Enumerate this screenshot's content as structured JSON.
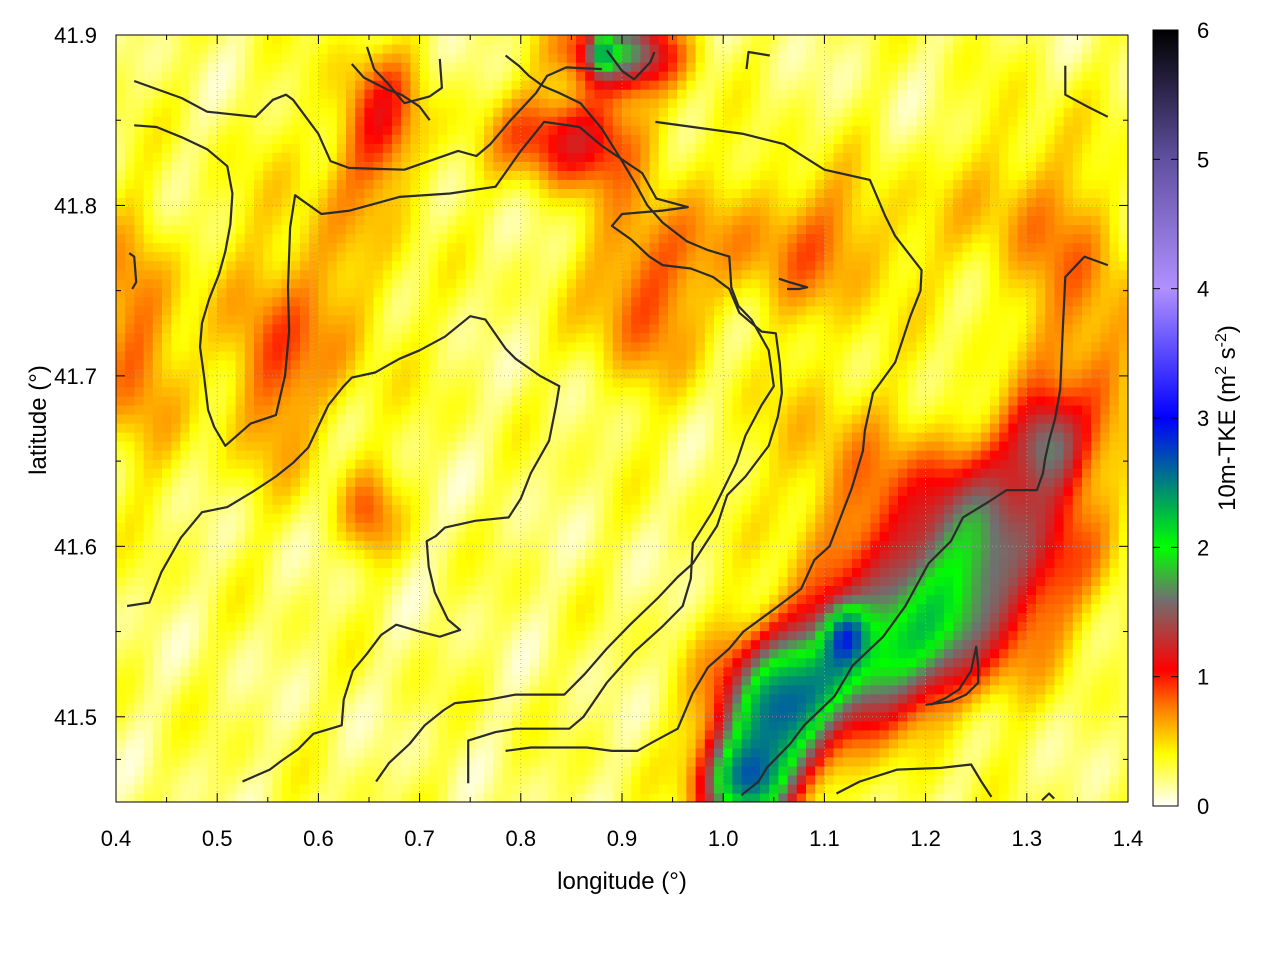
{
  "chart_data": {
    "type": "heatmap",
    "xlabel": "longitude (°)",
    "ylabel": "latitude (°)",
    "colorbar_label": "10m-TKE (m² s⁻²)",
    "colorbar_label_parts": {
      "base": "10m-TKE (m",
      "sup1": "2",
      "mid": " s",
      "sup2": "-2",
      "end": ")"
    },
    "xlim": [
      0.4,
      1.4
    ],
    "ylim": [
      41.45,
      41.9
    ],
    "clim": [
      0,
      6
    ],
    "x_ticks": [
      0.4,
      0.5,
      0.6,
      0.7,
      0.8,
      0.9,
      1.0,
      1.1,
      1.2,
      1.3,
      1.4
    ],
    "x_tick_labels": [
      "0.4",
      "0.5",
      "0.6",
      "0.7",
      "0.8",
      "0.9",
      "1.0",
      "1.1",
      "1.2",
      "1.3",
      "1.4"
    ],
    "y_ticks": [
      41.5,
      41.6,
      41.7,
      41.8,
      41.9
    ],
    "y_tick_labels": [
      "41.5",
      "41.6",
      "41.7",
      "41.8",
      "41.9"
    ],
    "colorbar_ticks": [
      0,
      1,
      2,
      3,
      4,
      5,
      6
    ],
    "colorbar_tick_labels": [
      "0",
      "1",
      "2",
      "3",
      "4",
      "5",
      "6"
    ],
    "grid": true,
    "colormap": [
      [
        0.0,
        "#ffffff"
      ],
      [
        0.4,
        "#ffff00"
      ],
      [
        0.75,
        "#ff8000"
      ],
      [
        1.05,
        "#ff0000"
      ],
      [
        1.6,
        "#707070"
      ],
      [
        2.0,
        "#00ff00"
      ],
      [
        3.0,
        "#0000ff"
      ],
      [
        4.0,
        "#b090ff"
      ],
      [
        5.0,
        "#6050a0"
      ],
      [
        6.0,
        "#000000"
      ]
    ],
    "field_features": [
      {
        "lon": 1.05,
        "lat": 41.5,
        "sx": 0.04,
        "sy": 0.03,
        "amp": 1.9
      },
      {
        "lon": 1.12,
        "lat": 41.53,
        "sx": 0.05,
        "sy": 0.025,
        "amp": 1.5
      },
      {
        "lon": 1.02,
        "lat": 41.46,
        "sx": 0.03,
        "sy": 0.02,
        "amp": 1.8
      },
      {
        "lon": 1.12,
        "lat": 41.55,
        "sx": 0.015,
        "sy": 0.012,
        "amp": 0.9
      },
      {
        "lon": 1.25,
        "lat": 41.6,
        "sx": 0.07,
        "sy": 0.04,
        "amp": 1.4
      },
      {
        "lon": 1.32,
        "lat": 41.66,
        "sx": 0.025,
        "sy": 0.02,
        "amp": 1.1
      },
      {
        "lon": 1.2,
        "lat": 41.55,
        "sx": 0.05,
        "sy": 0.03,
        "amp": 1.0
      },
      {
        "lon": 0.9,
        "lat": 41.89,
        "sx": 0.04,
        "sy": 0.015,
        "amp": 1.4
      },
      {
        "lon": 0.88,
        "lat": 41.89,
        "sx": 0.008,
        "sy": 0.008,
        "amp": 0.9
      },
      {
        "lon": 0.85,
        "lat": 41.84,
        "sx": 0.05,
        "sy": 0.02,
        "amp": 0.9
      },
      {
        "lon": 0.92,
        "lat": 41.75,
        "sx": 0.04,
        "sy": 0.04,
        "amp": 0.6
      },
      {
        "lon": 1.08,
        "lat": 41.78,
        "sx": 0.08,
        "sy": 0.03,
        "amp": 0.5
      },
      {
        "lon": 0.66,
        "lat": 41.85,
        "sx": 0.03,
        "sy": 0.03,
        "amp": 0.7
      },
      {
        "lon": 0.42,
        "lat": 41.72,
        "sx": 0.03,
        "sy": 0.05,
        "amp": 0.6
      },
      {
        "lon": 0.55,
        "lat": 41.7,
        "sx": 0.03,
        "sy": 0.04,
        "amp": 0.45
      },
      {
        "lon": 1.36,
        "lat": 41.72,
        "sx": 0.04,
        "sy": 0.05,
        "amp": 0.5
      },
      {
        "lon": 0.65,
        "lat": 41.62,
        "sx": 0.02,
        "sy": 0.02,
        "amp": 0.5
      },
      {
        "lon": 1.3,
        "lat": 41.8,
        "sx": 0.05,
        "sy": 0.04,
        "amp": 0.35
      },
      {
        "lon": 0.6,
        "lat": 41.75,
        "sx": 0.06,
        "sy": 0.06,
        "amp": 0.35
      },
      {
        "lon": 1.1,
        "lat": 41.65,
        "sx": 0.05,
        "sy": 0.05,
        "amp": 0.3
      }
    ],
    "contours": [
      [
        [
          0.418,
          41.873
        ],
        [
          0.465,
          41.863
        ],
        [
          0.49,
          41.855
        ],
        [
          0.538,
          41.852
        ],
        [
          0.555,
          41.862
        ],
        [
          0.568,
          41.865
        ],
        [
          0.575,
          41.862
        ],
        [
          0.6,
          41.842
        ],
        [
          0.612,
          41.826
        ],
        [
          0.63,
          41.822
        ],
        [
          0.685,
          41.821
        ],
        [
          0.738,
          41.832
        ],
        [
          0.756,
          41.829
        ],
        [
          0.77,
          41.836
        ],
        [
          0.79,
          41.85
        ],
        [
          0.815,
          41.866
        ],
        [
          0.826,
          41.876
        ],
        [
          0.845,
          41.881
        ],
        [
          0.88,
          41.88
        ]
      ],
      [
        [
          0.418,
          41.847
        ],
        [
          0.44,
          41.846
        ],
        [
          0.465,
          41.84
        ],
        [
          0.49,
          41.833
        ],
        [
          0.51,
          41.823
        ],
        [
          0.515,
          41.807
        ],
        [
          0.513,
          41.789
        ],
        [
          0.508,
          41.773
        ],
        [
          0.502,
          41.76
        ],
        [
          0.492,
          41.745
        ],
        [
          0.485,
          41.731
        ],
        [
          0.483,
          41.717
        ],
        [
          0.487,
          41.7
        ],
        [
          0.491,
          41.68
        ],
        [
          0.497,
          41.67
        ],
        [
          0.508,
          41.659
        ],
        [
          0.533,
          41.672
        ],
        [
          0.558,
          41.677
        ],
        [
          0.567,
          41.7
        ],
        [
          0.571,
          41.726
        ],
        [
          0.57,
          41.752
        ],
        [
          0.572,
          41.787
        ],
        [
          0.577,
          41.806
        ],
        [
          0.584,
          41.803
        ],
        [
          0.603,
          41.795
        ],
        [
          0.631,
          41.797
        ],
        [
          0.68,
          41.805
        ],
        [
          0.73,
          41.807
        ],
        [
          0.775,
          41.811
        ],
        [
          0.8,
          41.832
        ],
        [
          0.823,
          41.849
        ],
        [
          0.858,
          41.846
        ],
        [
          0.88,
          41.835
        ],
        [
          0.92,
          41.819
        ],
        [
          0.934,
          41.804
        ],
        [
          0.965,
          41.799
        ],
        [
          0.94,
          41.797
        ],
        [
          0.9,
          41.795
        ],
        [
          0.89,
          41.788
        ],
        [
          0.909,
          41.78
        ],
        [
          0.927,
          41.77
        ],
        [
          0.94,
          41.765
        ],
        [
          0.968,
          41.763
        ],
        [
          0.99,
          41.758
        ],
        [
          1.006,
          41.751
        ],
        [
          1.016,
          41.737
        ],
        [
          1.038,
          41.726
        ],
        [
          1.052,
          41.725
        ],
        [
          1.056,
          41.707
        ],
        [
          1.058,
          41.69
        ],
        [
          1.054,
          41.676
        ],
        [
          1.045,
          41.659
        ],
        [
          1.022,
          41.641
        ],
        [
          1.004,
          41.63
        ],
        [
          0.994,
          41.612
        ],
        [
          0.983,
          41.602
        ],
        [
          0.97,
          41.59
        ],
        [
          0.955,
          41.582
        ],
        [
          0.936,
          41.57
        ],
        [
          0.908,
          41.554
        ],
        [
          0.885,
          41.54
        ],
        [
          0.863,
          41.525
        ],
        [
          0.843,
          41.513
        ],
        [
          0.795,
          41.513
        ],
        [
          0.768,
          41.51
        ],
        [
          0.735,
          41.508
        ],
        [
          0.724,
          41.504
        ],
        [
          0.705,
          41.495
        ],
        [
          0.69,
          41.484
        ],
        [
          0.67,
          41.473
        ],
        [
          0.657,
          41.462
        ]
      ],
      [
        [
          0.411,
          41.565
        ],
        [
          0.433,
          41.567
        ],
        [
          0.445,
          41.585
        ],
        [
          0.464,
          41.605
        ],
        [
          0.485,
          41.62
        ],
        [
          0.51,
          41.623
        ],
        [
          0.535,
          41.632
        ],
        [
          0.558,
          41.641
        ],
        [
          0.575,
          41.649
        ],
        [
          0.59,
          41.658
        ],
        [
          0.602,
          41.673
        ],
        [
          0.61,
          41.683
        ],
        [
          0.625,
          41.694
        ],
        [
          0.633,
          41.699
        ],
        [
          0.656,
          41.702
        ],
        [
          0.68,
          41.71
        ],
        [
          0.7,
          41.715
        ],
        [
          0.725,
          41.723
        ],
        [
          0.75,
          41.735
        ],
        [
          0.765,
          41.733
        ],
        [
          0.785,
          41.716
        ],
        [
          0.795,
          41.71
        ],
        [
          0.819,
          41.7
        ],
        [
          0.838,
          41.694
        ],
        [
          0.835,
          41.683
        ],
        [
          0.828,
          41.662
        ],
        [
          0.81,
          41.643
        ],
        [
          0.8,
          41.628
        ],
        [
          0.788,
          41.617
        ],
        [
          0.755,
          41.615
        ],
        [
          0.725,
          41.611
        ],
        [
          0.716,
          41.606
        ],
        [
          0.707,
          41.603
        ],
        [
          0.709,
          41.588
        ],
        [
          0.715,
          41.573
        ],
        [
          0.728,
          41.557
        ],
        [
          0.74,
          41.551
        ],
        [
          0.72,
          41.547
        ],
        [
          0.7,
          41.55
        ],
        [
          0.677,
          41.554
        ],
        [
          0.662,
          41.548
        ],
        [
          0.648,
          41.537
        ],
        [
          0.634,
          41.527
        ],
        [
          0.625,
          41.51
        ],
        [
          0.623,
          41.495
        ],
        [
          0.595,
          41.49
        ],
        [
          0.58,
          41.481
        ],
        [
          0.563,
          41.474
        ],
        [
          0.552,
          41.469
        ],
        [
          0.525,
          41.462
        ]
      ],
      [
        [
          0.748,
          41.461
        ],
        [
          0.748,
          41.486
        ],
        [
          0.775,
          41.491
        ],
        [
          0.795,
          41.493
        ],
        [
          0.848,
          41.493
        ],
        [
          0.862,
          41.5
        ],
        [
          0.885,
          41.52
        ],
        [
          0.912,
          41.538
        ],
        [
          0.94,
          41.553
        ],
        [
          0.96,
          41.565
        ],
        [
          0.968,
          41.581
        ],
        [
          0.97,
          41.602
        ],
        [
          0.989,
          41.62
        ],
        [
          0.999,
          41.632
        ],
        [
          1.013,
          41.649
        ],
        [
          1.022,
          41.665
        ],
        [
          1.038,
          41.683
        ],
        [
          1.05,
          41.694
        ],
        [
          1.045,
          41.715
        ],
        [
          1.028,
          41.733
        ],
        [
          1.015,
          41.741
        ],
        [
          1.008,
          41.752
        ],
        [
          1.006,
          41.77
        ],
        [
          0.984,
          41.774
        ],
        [
          0.964,
          41.779
        ],
        [
          0.94,
          41.79
        ],
        [
          0.925,
          41.8
        ],
        [
          0.914,
          41.812
        ],
        [
          0.899,
          41.827
        ],
        [
          0.88,
          41.845
        ],
        [
          0.859,
          41.86
        ],
        [
          0.838,
          41.866
        ],
        [
          0.822,
          41.87
        ],
        [
          0.808,
          41.876
        ],
        [
          0.798,
          41.882
        ],
        [
          0.785,
          41.888
        ]
      ],
      [
        [
          0.72,
          41.886
        ],
        [
          0.722,
          41.869
        ],
        [
          0.71,
          41.864
        ],
        [
          0.685,
          41.86
        ],
        [
          0.668,
          41.872
        ],
        [
          0.655,
          41.88
        ],
        [
          0.648,
          41.893
        ]
      ],
      [
        [
          0.885,
          41.891
        ],
        [
          0.9,
          41.879
        ],
        [
          0.912,
          41.874
        ],
        [
          0.928,
          41.884
        ],
        [
          0.932,
          41.89
        ]
      ],
      [
        [
          1.023,
          41.88
        ],
        [
          1.025,
          41.89
        ],
        [
          1.046,
          41.888
        ]
      ],
      [
        [
          1.338,
          41.882
        ],
        [
          1.338,
          41.865
        ],
        [
          1.36,
          41.858
        ],
        [
          1.38,
          41.852
        ]
      ],
      [
        [
          0.933,
          41.849
        ],
        [
          0.97,
          41.846
        ],
        [
          1.02,
          41.842
        ],
        [
          1.06,
          41.836
        ],
        [
          1.1,
          41.821
        ],
        [
          1.145,
          41.815
        ],
        [
          1.16,
          41.794
        ],
        [
          1.17,
          41.782
        ],
        [
          1.196,
          41.762
        ],
        [
          1.195,
          41.75
        ],
        [
          1.185,
          41.735
        ],
        [
          1.17,
          41.708
        ],
        [
          1.148,
          41.69
        ],
        [
          1.14,
          41.668
        ],
        [
          1.138,
          41.656
        ],
        [
          1.127,
          41.634
        ],
        [
          1.105,
          41.6
        ],
        [
          1.09,
          41.592
        ],
        [
          1.077,
          41.575
        ],
        [
          1.05,
          41.563
        ],
        [
          1.02,
          41.55
        ],
        [
          1.006,
          41.54
        ],
        [
          0.985,
          41.529
        ],
        [
          0.97,
          41.514
        ],
        [
          0.955,
          41.493
        ],
        [
          0.93,
          41.485
        ],
        [
          0.915,
          41.48
        ],
        [
          0.89,
          41.48
        ],
        [
          0.865,
          41.482
        ],
        [
          0.81,
          41.482
        ],
        [
          0.785,
          41.48
        ]
      ],
      [
        [
          1.055,
          41.757
        ],
        [
          1.065,
          41.755
        ],
        [
          1.083,
          41.752
        ],
        [
          1.075,
          41.751
        ],
        [
          1.063,
          41.751
        ]
      ],
      [
        [
          1.38,
          41.765
        ],
        [
          1.357,
          41.77
        ],
        [
          1.338,
          41.758
        ],
        [
          1.335,
          41.72
        ],
        [
          1.333,
          41.692
        ],
        [
          1.328,
          41.675
        ],
        [
          1.322,
          41.662
        ],
        [
          1.318,
          41.651
        ],
        [
          1.316,
          41.643
        ],
        [
          1.31,
          41.633
        ],
        [
          1.28,
          41.633
        ],
        [
          1.262,
          41.626
        ],
        [
          1.237,
          41.617
        ],
        [
          1.225,
          41.603
        ],
        [
          1.203,
          41.59
        ],
        [
          1.18,
          41.565
        ],
        [
          1.158,
          41.547
        ],
        [
          1.128,
          41.53
        ],
        [
          1.11,
          41.512
        ],
        [
          1.08,
          41.495
        ],
        [
          1.066,
          41.484
        ],
        [
          1.043,
          41.47
        ],
        [
          1.035,
          41.462
        ],
        [
          1.018,
          41.454
        ]
      ],
      [
        [
          1.2,
          41.507
        ],
        [
          1.225,
          41.509
        ],
        [
          1.24,
          41.513
        ],
        [
          1.252,
          41.52
        ],
        [
          1.252,
          41.53
        ],
        [
          1.25,
          41.541
        ],
        [
          1.245,
          41.527
        ],
        [
          1.233,
          41.516
        ],
        [
          1.22,
          41.511
        ],
        [
          1.205,
          41.507
        ]
      ],
      [
        [
          1.112,
          41.455
        ],
        [
          1.135,
          41.462
        ],
        [
          1.172,
          41.469
        ],
        [
          1.215,
          41.47
        ],
        [
          1.245,
          41.472
        ],
        [
          1.255,
          41.462
        ],
        [
          1.265,
          41.453
        ]
      ],
      [
        [
          1.315,
          41.451
        ],
        [
          1.322,
          41.455
        ],
        [
          1.327,
          41.452
        ]
      ],
      [
        [
          0.413,
          41.772
        ],
        [
          0.418,
          41.77
        ],
        [
          0.42,
          41.755
        ],
        [
          0.416,
          41.751
        ]
      ],
      [
        [
          0.633,
          41.883
        ],
        [
          0.645,
          41.875
        ],
        [
          0.668,
          41.868
        ],
        [
          0.682,
          41.865
        ],
        [
          0.7,
          41.858
        ],
        [
          0.71,
          41.85
        ]
      ]
    ]
  }
}
